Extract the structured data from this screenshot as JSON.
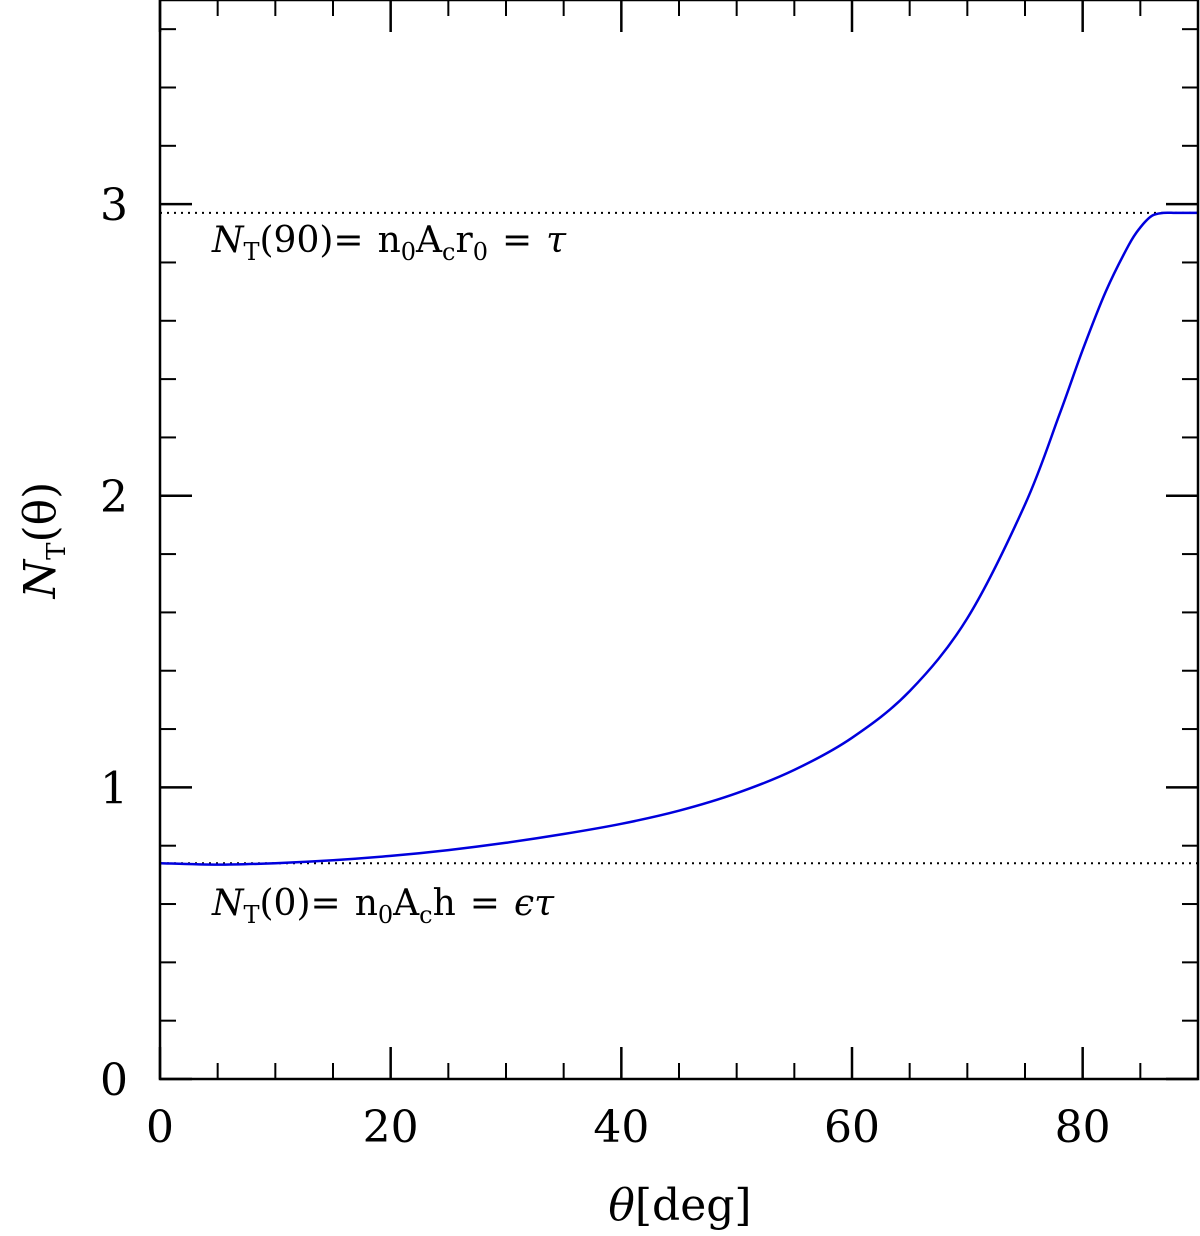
{
  "chart_data": {
    "type": "line",
    "x_range": [
      0,
      90
    ],
    "y_range": [
      0,
      3.7
    ],
    "x_ticks": [
      0,
      20,
      40,
      60,
      80
    ],
    "x_tick_labels": [
      "0",
      "20",
      "40",
      "60",
      "80"
    ],
    "y_ticks": [
      0,
      1,
      2,
      3
    ],
    "y_tick_labels": [
      "0",
      "1",
      "2",
      "3"
    ],
    "x_minor_step": 5,
    "y_minor_step": 0.2,
    "grid": false,
    "xlabel": {
      "symbol": "θ",
      "unit": "[deg]"
    },
    "ylabel": {
      "symbol": "N",
      "subscript": "T",
      "argument": "(θ)"
    },
    "series": [
      {
        "color": "#0000dd",
        "x": [
          0,
          5,
          10,
          15,
          20,
          25,
          30,
          35,
          40,
          45,
          50,
          55,
          60,
          65,
          70,
          75,
          78,
          80,
          82,
          84,
          85,
          86,
          87,
          88,
          89,
          90
        ],
        "y": [
          0.74,
          0.735,
          0.74,
          0.75,
          0.765,
          0.785,
          0.81,
          0.84,
          0.875,
          0.92,
          0.98,
          1.06,
          1.17,
          1.33,
          1.58,
          1.97,
          2.28,
          2.5,
          2.7,
          2.86,
          2.92,
          2.96,
          2.97,
          2.97,
          2.97,
          2.97
        ]
      }
    ],
    "reference_lines": [
      {
        "y": 2.97,
        "style": "dotted"
      },
      {
        "y": 0.74,
        "style": "dotted"
      }
    ],
    "annotations": [
      {
        "name": "annotation-tau",
        "lhs_symbol": "N",
        "lhs_subscript": "T",
        "lhs_arg": "(90)=",
        "n": "n",
        "n_sub": "0",
        "a": "A",
        "a_sub": "c",
        "tail": "r",
        "tail_sub": "0",
        "eq": "=",
        "rhs": "τ"
      },
      {
        "name": "annotation-epsilon-tau",
        "lhs_symbol": "N",
        "lhs_subscript": "T",
        "lhs_arg": "(0)=",
        "n": "n",
        "n_sub": "0",
        "a": "A",
        "a_sub": "c",
        "tail": "h",
        "eq": "=",
        "rhs": "ϵτ"
      }
    ]
  }
}
